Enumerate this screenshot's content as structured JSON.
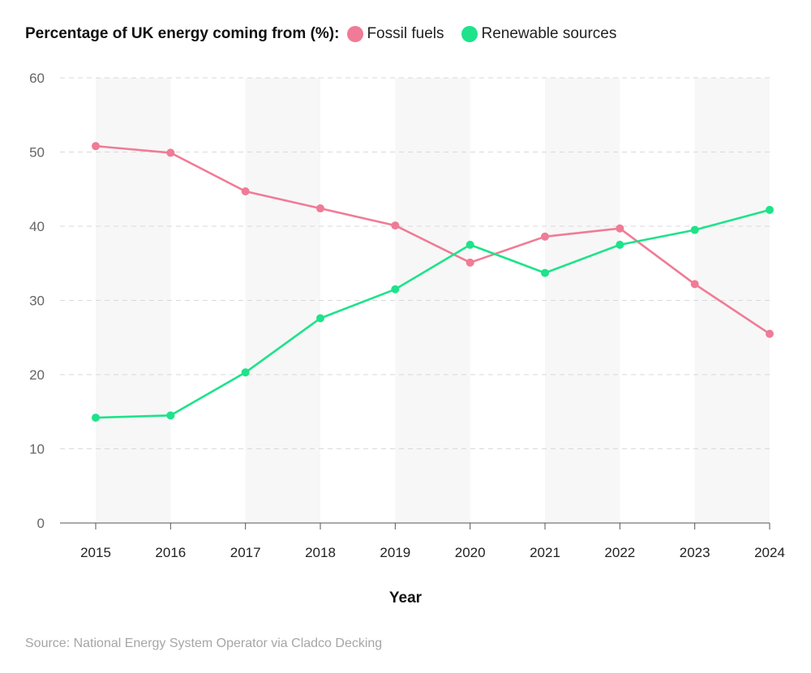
{
  "chart_data": {
    "type": "line",
    "legend_title": "Percentage of UK energy coming from (%):",
    "categories": [
      "2015",
      "2016",
      "2017",
      "2018",
      "2019",
      "2020",
      "2021",
      "2022",
      "2023",
      "2024"
    ],
    "series": [
      {
        "name": "Fossil fuels",
        "color": "#f07b96",
        "values": [
          50.8,
          49.9,
          44.7,
          42.4,
          40.1,
          35.1,
          38.6,
          39.7,
          32.2,
          25.5
        ]
      },
      {
        "name": "Renewable sources",
        "color": "#1de38a",
        "values": [
          14.2,
          14.5,
          20.3,
          27.6,
          31.5,
          37.5,
          33.7,
          37.5,
          39.5,
          42.2
        ]
      }
    ],
    "ylim": [
      0,
      60
    ],
    "yticks": [
      "0",
      "10",
      "20",
      "30",
      "40",
      "50",
      "60"
    ],
    "xlabel": "Year",
    "ylabel": "",
    "grid": true,
    "legend_position": "top-left"
  },
  "source": "Source: National Energy System Operator via Cladco Decking"
}
